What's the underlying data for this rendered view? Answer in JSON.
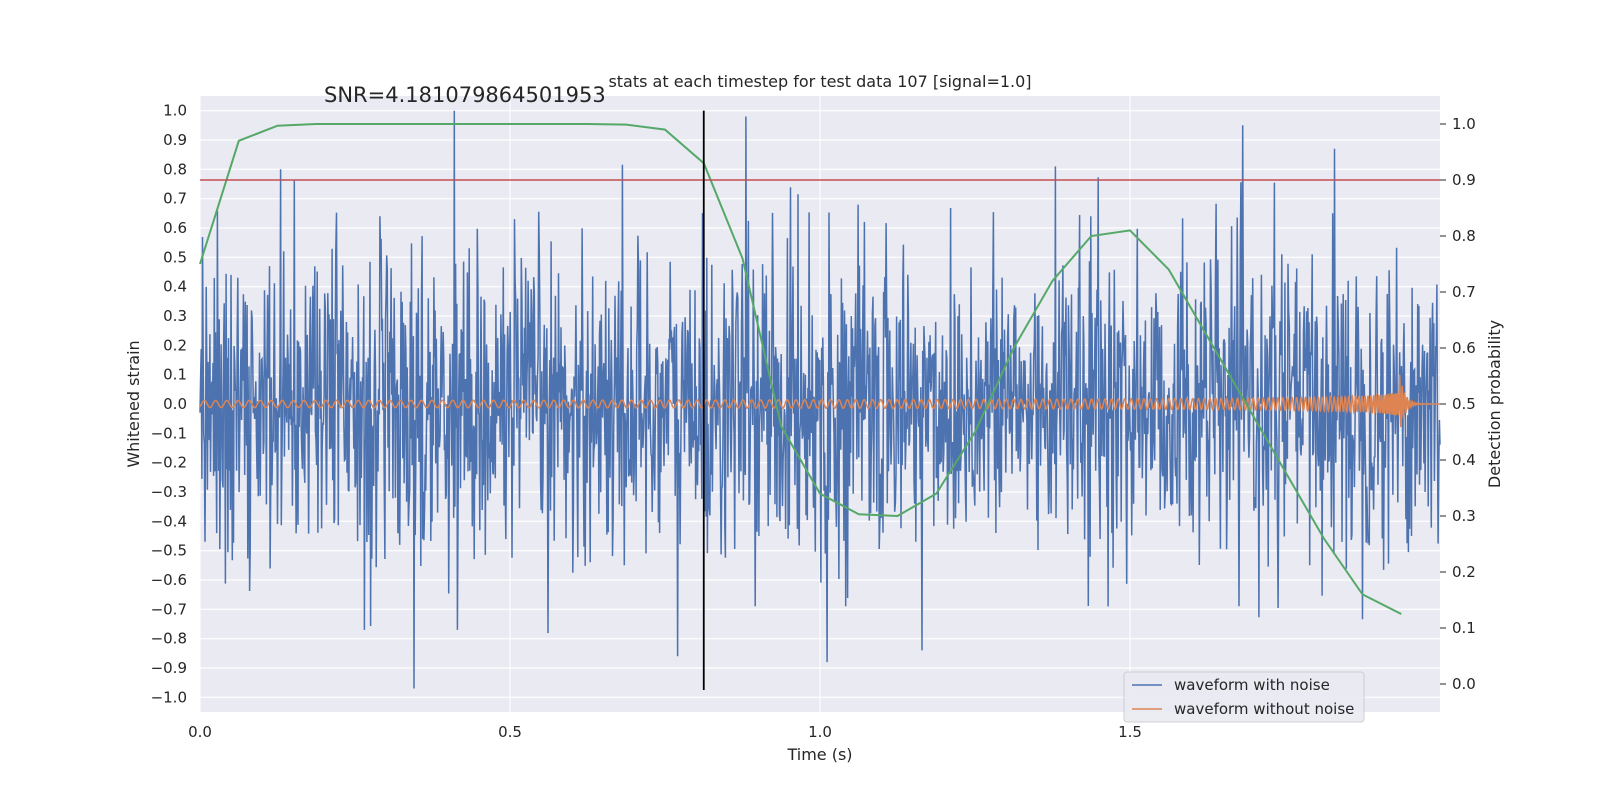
{
  "chart_data": {
    "type": "line",
    "title": "stats at each timestep for test data 107 [signal=1.0]",
    "xlabel": "Time (s)",
    "ylabel": "Whitened strain",
    "y2label": "Detection probability",
    "xlim": [
      0.0,
      2.0
    ],
    "ylim": [
      -1.05,
      1.05
    ],
    "y2lim": [
      -0.05,
      1.05
    ],
    "x_ticks": [
      "0.0",
      "0.5",
      "1.0",
      "1.5"
    ],
    "x_tick_values": [
      0.0,
      0.5,
      1.0,
      1.5
    ],
    "y_ticks": [
      "1.0",
      "0.9",
      "0.8",
      "0.7",
      "0.6",
      "0.5",
      "0.4",
      "0.3",
      "0.2",
      "0.1",
      "0.0",
      "−0.1",
      "−0.2",
      "−0.3",
      "−0.4",
      "−0.5",
      "−0.6",
      "−0.7",
      "−0.8",
      "−0.9",
      "−1.0"
    ],
    "y_tick_values": [
      1.0,
      0.9,
      0.8,
      0.7,
      0.6,
      0.5,
      0.4,
      0.3,
      0.2,
      0.1,
      0.0,
      -0.1,
      -0.2,
      -0.3,
      -0.4,
      -0.5,
      -0.6,
      -0.7,
      -0.8,
      -0.9,
      -1.0
    ],
    "y2_ticks": [
      "1.0",
      "0.9",
      "0.8",
      "0.7",
      "0.6",
      "0.5",
      "0.4",
      "0.3",
      "0.2",
      "0.1",
      "0.0"
    ],
    "y2_tick_values": [
      1.0,
      0.9,
      0.8,
      0.7,
      0.6,
      0.5,
      0.4,
      0.3,
      0.2,
      0.1,
      0.0
    ],
    "annotation": "SNR=4.181079864501953",
    "annotation_pos": {
      "x": 0.2,
      "y": 1.03
    },
    "threshold": 0.9,
    "vline_x": 0.8125,
    "vline_range": [
      -0.975,
      1.0
    ],
    "series": [
      {
        "name": "waveform with noise",
        "color": "#4c72b0",
        "description": "noisy whitened strain, approx uniform noise amplitude ~0.3 with spikes to +1.0 and -0.97, sampled across 0 to 2.0 s"
      },
      {
        "name": "waveform without noise",
        "color": "#dd8452",
        "description": "chirp signal, amplitude ~0.01 growing to ~0.13 near 1.93 s then ringdown"
      },
      {
        "name": "detection probability",
        "color": "#55a868",
        "x": [
          0.0,
          0.0625,
          0.125,
          0.1875,
          0.25,
          0.3125,
          0.375,
          0.4375,
          0.5,
          0.5625,
          0.625,
          0.6875,
          0.75,
          0.8125,
          0.875,
          0.9375,
          1.0,
          1.0625,
          1.125,
          1.1875,
          1.25,
          1.3125,
          1.375,
          1.4375,
          1.5,
          1.5625,
          1.625,
          1.6875,
          1.75,
          1.8125,
          1.875,
          1.9375
        ],
        "values": [
          0.75,
          0.97,
          0.997,
          1.0,
          1.0,
          1.0,
          1.0,
          1.0,
          1.0,
          1.0,
          1.0,
          0.999,
          0.99,
          0.93,
          0.76,
          0.46,
          0.34,
          0.303,
          0.3,
          0.34,
          0.45,
          0.6,
          0.72,
          0.8,
          0.81,
          0.74,
          0.62,
          0.5,
          0.38,
          0.26,
          0.16,
          0.125
        ]
      }
    ],
    "legend": [
      "waveform with noise",
      "waveform without noise"
    ],
    "legend_loc": "lower right"
  },
  "colors": {
    "background": "#ffffff",
    "axes_bg": "#eaeaf2",
    "grid": "#ffffff",
    "threshold_line": "#c44e52",
    "vline": "#000000"
  }
}
